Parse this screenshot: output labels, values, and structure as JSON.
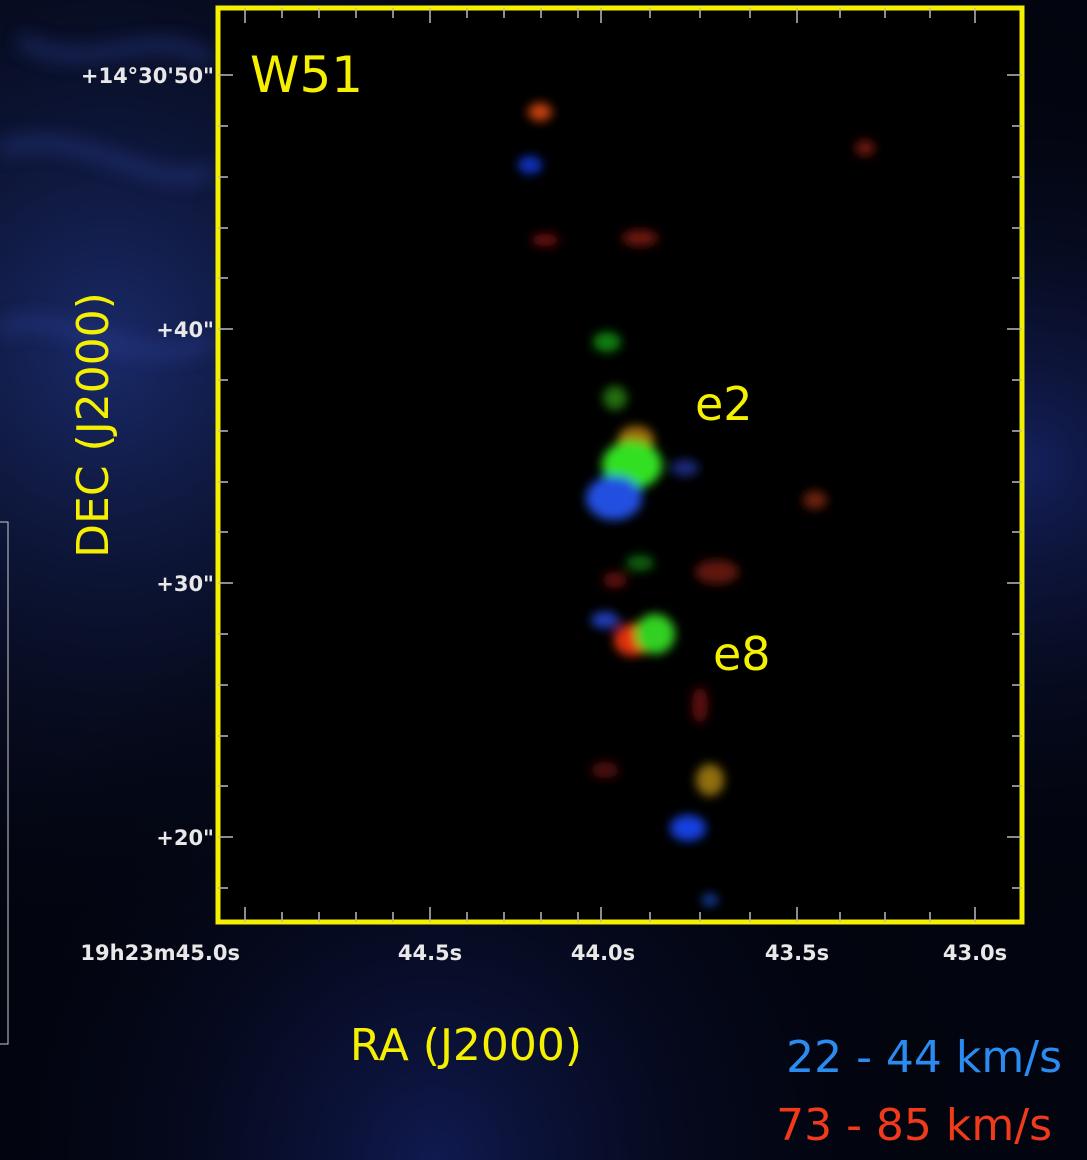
{
  "figure": {
    "title": "W51",
    "y_axis_label": "DEC (J2000)",
    "x_axis_label": "RA (J2000)",
    "y_tick_labels": [
      "+14°30'50\"",
      "+40\"",
      "+30\"",
      "+20\""
    ],
    "x_tick_labels": [
      "19h23m45.0s",
      "44.5s",
      "44.0s",
      "43.5s",
      "43.0s"
    ],
    "sources": [
      "e2",
      "e8"
    ],
    "velocity_ranges": [
      "22 - 44 km/s",
      "73 - 85 km/s"
    ]
  }
}
